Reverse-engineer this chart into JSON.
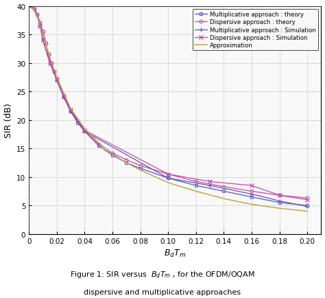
{
  "xlim": [
    0,
    0.21
  ],
  "ylim": [
    0,
    40
  ],
  "xlabel": "$B_dT_m$",
  "ylabel": "SIR (dB)",
  "figsize": [
    4.74,
    4.35
  ],
  "dpi": 100,
  "caption_line1": "Figure 1: SIR versus  $B_dT_m$ , for the OFDM/OQAM",
  "caption_line2": "dispersive and multiplicative approaches",
  "legend_entries": [
    "Multiplicative approach : theory",
    "Dispersive approach : theory",
    "Multiplicative approach : Simulation",
    "Dispersive approach : Simulation",
    "Approximation"
  ],
  "colors": {
    "multiplicative": "#5555bb",
    "dispersive": "#cc44aa",
    "approximation": "#bbaa44"
  },
  "x_theory": [
    0.002,
    0.004,
    0.006,
    0.008,
    0.01,
    0.012,
    0.014,
    0.016,
    0.018,
    0.02,
    0.025,
    0.03,
    0.035,
    0.04,
    0.05,
    0.06,
    0.07,
    0.08,
    0.1,
    0.12,
    0.14,
    0.16,
    0.18,
    0.2
  ],
  "mult_theory_y": [
    40.0,
    39.5,
    38.5,
    37.0,
    35.5,
    33.5,
    31.5,
    30.0,
    28.5,
    27.0,
    24.0,
    21.5,
    19.5,
    18.0,
    15.5,
    13.8,
    12.5,
    11.5,
    9.8,
    8.5,
    7.5,
    6.5,
    5.5,
    5.0
  ],
  "disp_theory_y": [
    40.0,
    39.5,
    38.5,
    37.0,
    35.5,
    33.5,
    31.5,
    30.0,
    28.5,
    27.2,
    24.2,
    21.8,
    19.8,
    18.2,
    15.8,
    14.2,
    13.0,
    12.0,
    10.5,
    9.2,
    8.3,
    7.5,
    6.8,
    6.3
  ],
  "x_sim_mult": [
    0.008,
    0.01,
    0.015,
    0.02,
    0.025,
    0.03,
    0.04,
    0.1,
    0.13,
    0.16,
    0.18,
    0.2
  ],
  "mult_sim_y": [
    36.5,
    34.0,
    30.0,
    27.0,
    24.0,
    21.5,
    18.0,
    9.8,
    8.5,
    7.0,
    5.8,
    4.8
  ],
  "x_sim_disp": [
    0.008,
    0.01,
    0.015,
    0.02,
    0.025,
    0.03,
    0.04,
    0.1,
    0.13,
    0.16,
    0.18,
    0.2
  ],
  "disp_sim_y": [
    36.5,
    34.0,
    30.0,
    27.2,
    24.2,
    21.8,
    18.2,
    10.5,
    9.2,
    8.5,
    6.8,
    6.0
  ],
  "x_approx_dense": [
    0.001,
    0.002,
    0.004,
    0.006,
    0.008,
    0.01,
    0.015,
    0.02,
    0.03,
    0.04,
    0.05,
    0.06,
    0.07,
    0.08,
    0.1,
    0.12,
    0.14,
    0.16,
    0.18,
    0.2
  ],
  "approx_y": [
    40.0,
    39.8,
    39.0,
    38.0,
    36.5,
    35.0,
    31.0,
    27.5,
    22.0,
    18.5,
    16.0,
    14.0,
    12.5,
    11.2,
    9.0,
    7.5,
    6.2,
    5.2,
    4.5,
    4.0
  ],
  "xticks": [
    0,
    0.02,
    0.04,
    0.06,
    0.08,
    0.1,
    0.12,
    0.14,
    0.16,
    0.18,
    0.2
  ],
  "yticks": [
    0,
    5,
    10,
    15,
    20,
    25,
    30,
    35,
    40
  ]
}
